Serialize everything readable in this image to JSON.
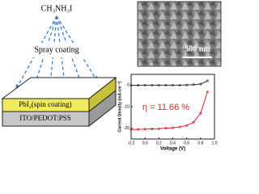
{
  "diagram": {
    "precursor": "CH₃NH₃I",
    "process": "Spray coating",
    "layer_top": "PbI₂(spin coating)",
    "layer_bottom": "ITO/PEDOT:PSS",
    "scale_bar": "500 nm"
  },
  "chart_data": {
    "type": "line",
    "xlabel": "Voltage (V)",
    "ylabel": "Current Density (mA cm⁻²)",
    "annotation": "η = 11.66 %",
    "x": [
      -0.2,
      -0.1,
      0,
      0.1,
      0.2,
      0.3,
      0.4,
      0.5,
      0.6,
      0.7,
      0.8,
      0.9,
      1.0
    ],
    "series": [
      {
        "color": "#e0202a",
        "values": [
          -20.6,
          -20.5,
          -20.4,
          -20.3,
          -20.2,
          -20.0,
          -19.8,
          -19.4,
          -18.7,
          -17.2,
          -13,
          -3,
          null
        ]
      },
      {
        "color": "#333333",
        "values": [
          -0.1,
          -0.05,
          0,
          0,
          0,
          0,
          0,
          0,
          0.1,
          0.2,
          0.5,
          2,
          null
        ]
      }
    ],
    "xlim": [
      -0.2,
      1.0
    ],
    "xticks": [
      -0.2,
      {
        "value": 0,
        "label": "0.0"
      },
      0.2,
      0.4,
      0.6,
      0.8,
      {
        "value": 1.0,
        "label": "1.0"
      }
    ],
    "ylim": [
      -25,
      5
    ],
    "yticks": [
      -20,
      -10,
      0
    ]
  }
}
